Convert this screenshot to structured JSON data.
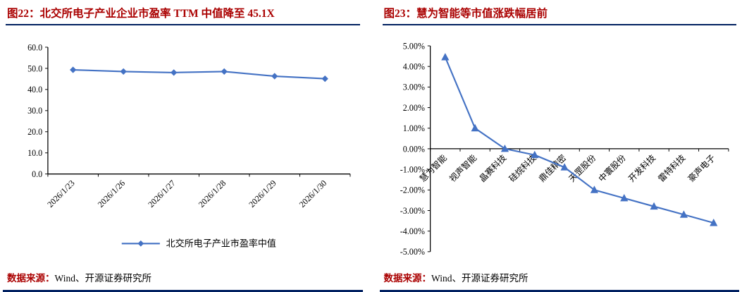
{
  "colors": {
    "title_red": "#aa0000",
    "rule_navy": "#002060",
    "series_blue": "#4472c4",
    "axis_black": "#000000"
  },
  "panels": [
    {
      "figure_label": "图22",
      "title": "图22：北交所电子产业企业市盈率 TTM 中值降至 45.1X",
      "source_label": "数据来源：",
      "source_text": "Wind、开源证券研究所"
    },
    {
      "figure_label": "图23",
      "title": "图23：慧为智能等市值涨跌幅居前",
      "source_label": "数据来源：",
      "source_text": "Wind、开源证券研究所"
    }
  ],
  "chart_data": [
    {
      "type": "line",
      "title": "北交所电子产业企业市盈率TTM中值降至45.1X",
      "categories": [
        "2026/1/23",
        "2026/1/26",
        "2026/1/27",
        "2026/1/28",
        "2026/1/29",
        "2026/1/30"
      ],
      "series": [
        {
          "name": "北交所电子产业市盈率中值",
          "values": [
            49.3,
            48.5,
            48.0,
            48.5,
            46.3,
            45.1
          ]
        }
      ],
      "xlabel": "",
      "ylabel": "",
      "ylim": [
        0,
        60
      ],
      "ytick_step": 10,
      "ytick_format": "fixed1",
      "marker": "diamond",
      "grid": false,
      "legend_position": "bottom"
    },
    {
      "type": "line",
      "title": "慧为智能等市值涨跌幅居前",
      "categories": [
        "慧为智能",
        "视声智能",
        "晶赛科技",
        "硅烷科技",
        "鼎佳精密",
        "天罡股份",
        "中寰股份",
        "开发科技",
        "雷特科技",
        "豪声电子"
      ],
      "series": [
        {
          "name": "市值涨跌幅",
          "values": [
            4.45,
            1.0,
            0.0,
            -0.3,
            -0.9,
            -2.0,
            -2.4,
            -2.8,
            -3.2,
            -3.6
          ]
        }
      ],
      "xlabel": "",
      "ylabel": "",
      "ylim": [
        -5,
        5
      ],
      "ytick_step": 1,
      "ytick_format": "percent2",
      "marker": "triangle",
      "grid": false,
      "legend_position": "none"
    }
  ]
}
